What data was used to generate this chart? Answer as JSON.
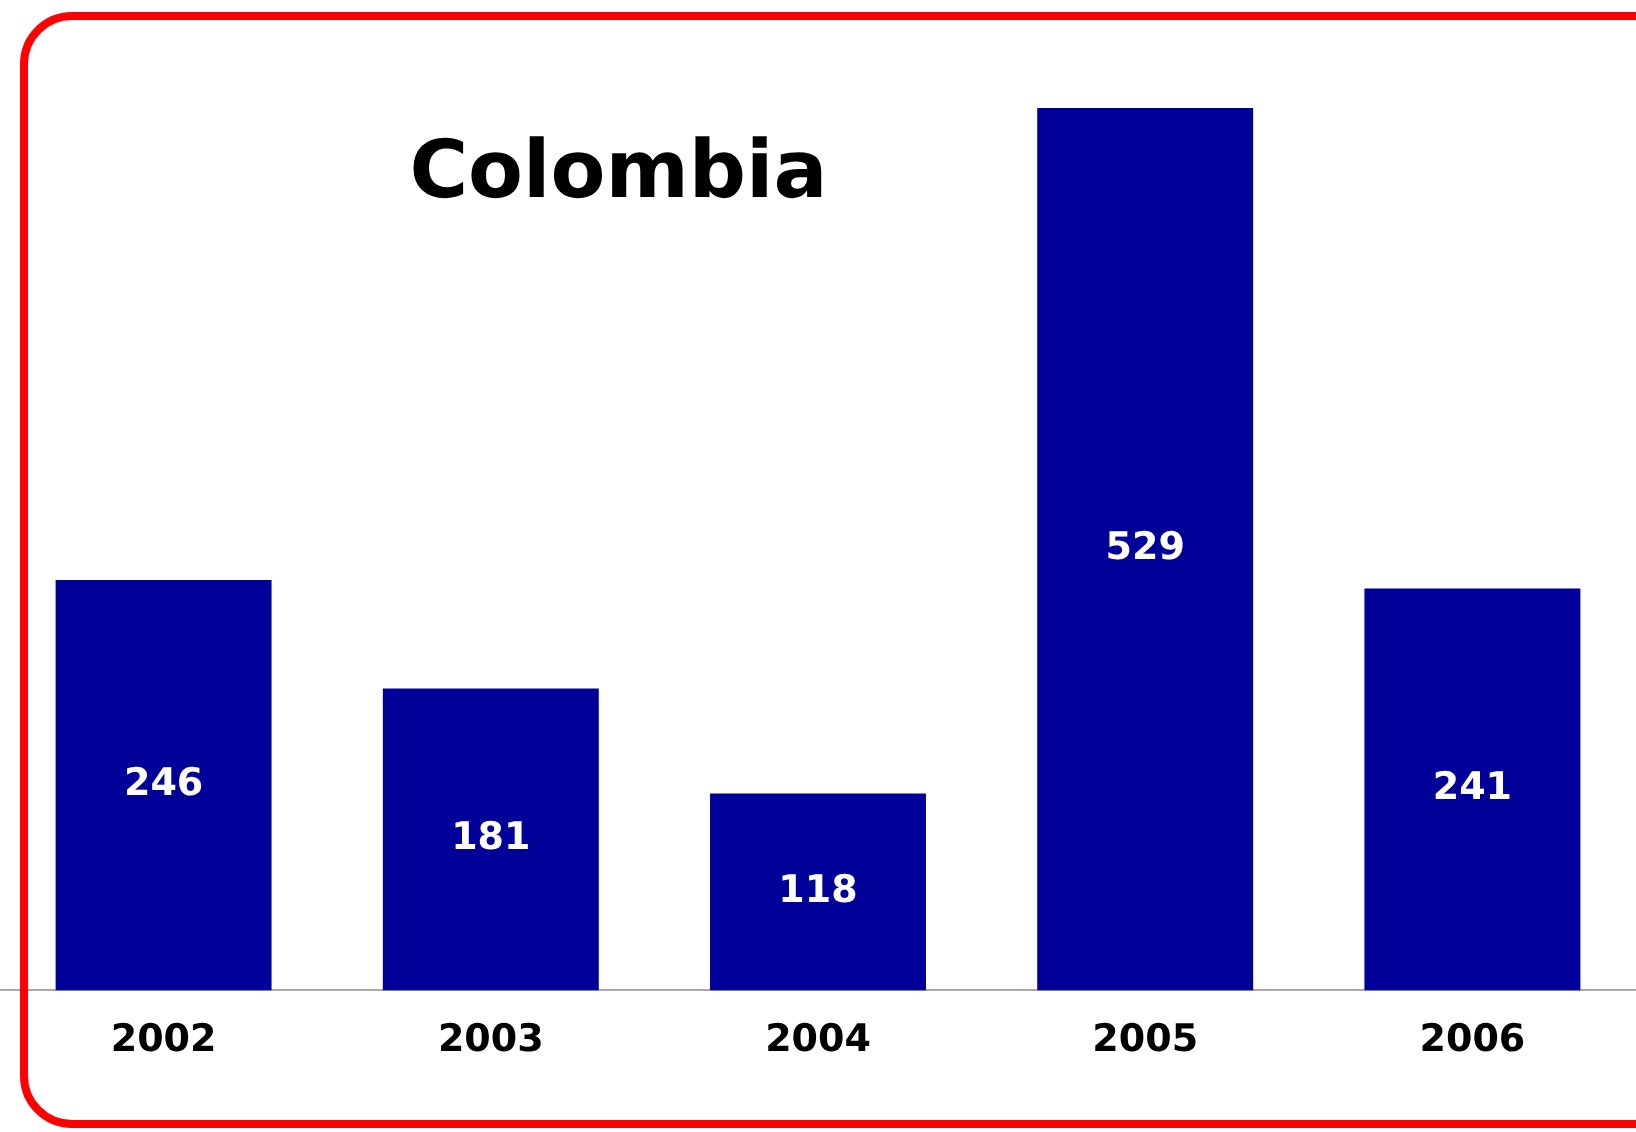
{
  "chart_data": {
    "type": "bar",
    "title": "Colombia",
    "categories": [
      "2002",
      "2003",
      "2004",
      "2005",
      "2006"
    ],
    "values": [
      246,
      181,
      118,
      529,
      241
    ],
    "color": "#000099",
    "ylim": [
      0,
      529
    ],
    "data_labels": true,
    "tick_labels": "x",
    "grid": false,
    "legend": false
  }
}
